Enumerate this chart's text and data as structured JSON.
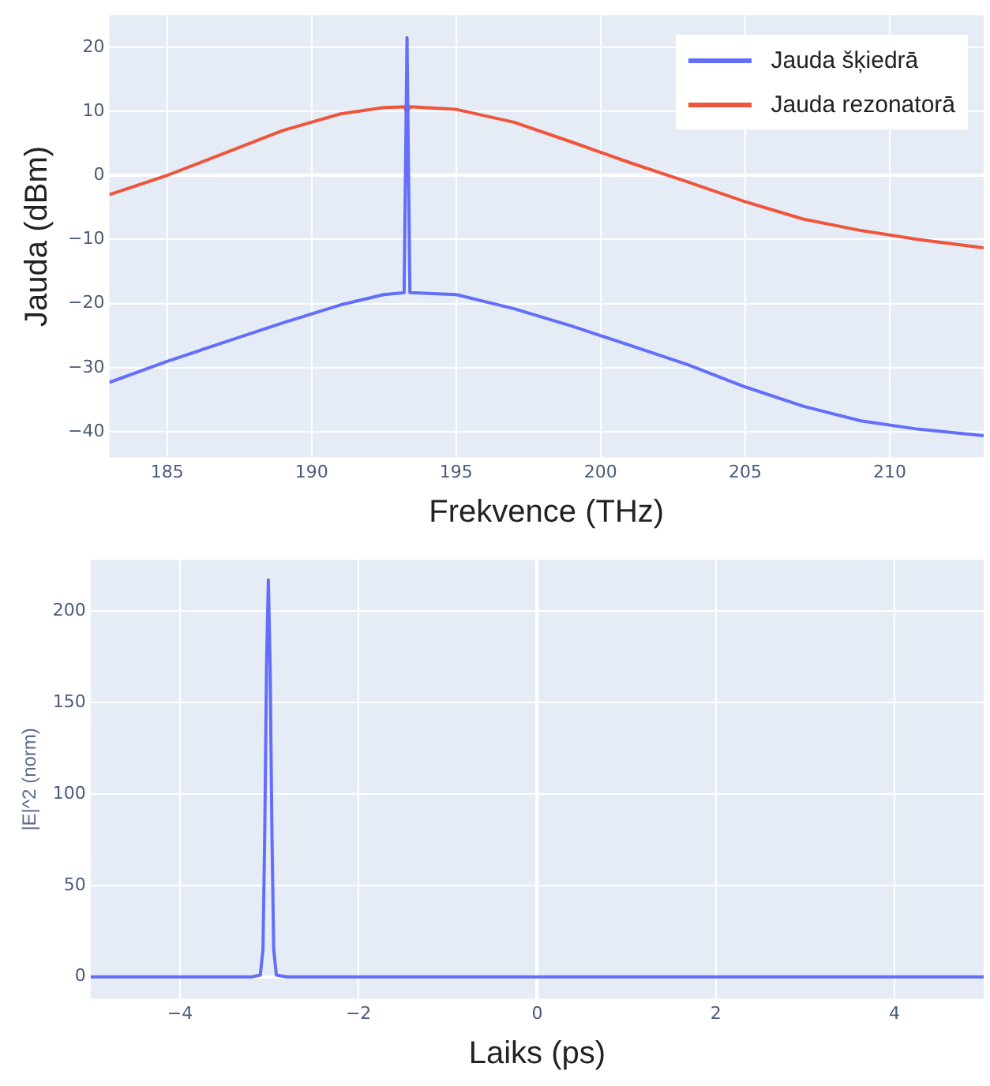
{
  "chart_data": [
    {
      "type": "line",
      "xlabel": "Frekvence (THz)",
      "ylabel": "Jauda (dBm)",
      "xlim": [
        183,
        213.25
      ],
      "xticks": [
        185,
        190,
        195,
        200,
        205,
        210
      ],
      "ylim": [
        -44,
        25
      ],
      "yticks": [
        -40,
        -30,
        -20,
        -10,
        0,
        10,
        20
      ],
      "grid": true,
      "legend": "top right",
      "marker": "none",
      "line_style": "solid",
      "series": [
        {
          "name": "Jauda šķiedrā",
          "color": "#636efa",
          "x": [
            183,
            185,
            187,
            189,
            191,
            192.5,
            193.2,
            193.3,
            193.4,
            195,
            197,
            199,
            201,
            203,
            205,
            207,
            209,
            211,
            213.25
          ],
          "values": [
            -32.3,
            -29,
            -26,
            -23,
            -20.2,
            -18.6,
            -18.3,
            21.5,
            -18.3,
            -18.6,
            -20.8,
            -23.5,
            -26.5,
            -29.5,
            -33,
            -36,
            -38.3,
            -39.6,
            -40.6
          ]
        },
        {
          "name": "Jauda rezonatorā",
          "color": "#ef553b",
          "x": [
            183,
            185,
            187,
            189,
            191,
            192.5,
            193.2,
            193.3,
            193.4,
            195,
            197,
            199,
            201,
            203,
            205,
            207,
            209,
            211,
            213.25
          ],
          "values": [
            -3,
            0,
            3.5,
            7,
            9.6,
            10.6,
            10.7,
            9.8,
            10.7,
            10.3,
            8.3,
            5.2,
            2,
            -1,
            -4.1,
            -6.8,
            -8.6,
            -10,
            -11.3
          ]
        }
      ]
    },
    {
      "type": "line",
      "xlabel": "Laiks (ps)",
      "ylabel": "|E|^2 (norm)",
      "xlim": [
        -5,
        5
      ],
      "xticks": [
        -4,
        -2,
        0,
        2,
        4
      ],
      "ylim": [
        -12,
        228
      ],
      "yticks": [
        0,
        50,
        100,
        150,
        200
      ],
      "grid": true,
      "marker": "none",
      "line_style": "solid",
      "series": [
        {
          "color": "#636efa",
          "x": [
            -5,
            -3.2,
            -3.1,
            -3.07,
            -3.05,
            -3.03,
            -3.01,
            -2.99,
            -2.97,
            -2.95,
            -2.92,
            -2.8,
            5
          ],
          "values": [
            0,
            0,
            1,
            15,
            80,
            170,
            217,
            170,
            80,
            15,
            1,
            0,
            0
          ]
        }
      ]
    }
  ]
}
